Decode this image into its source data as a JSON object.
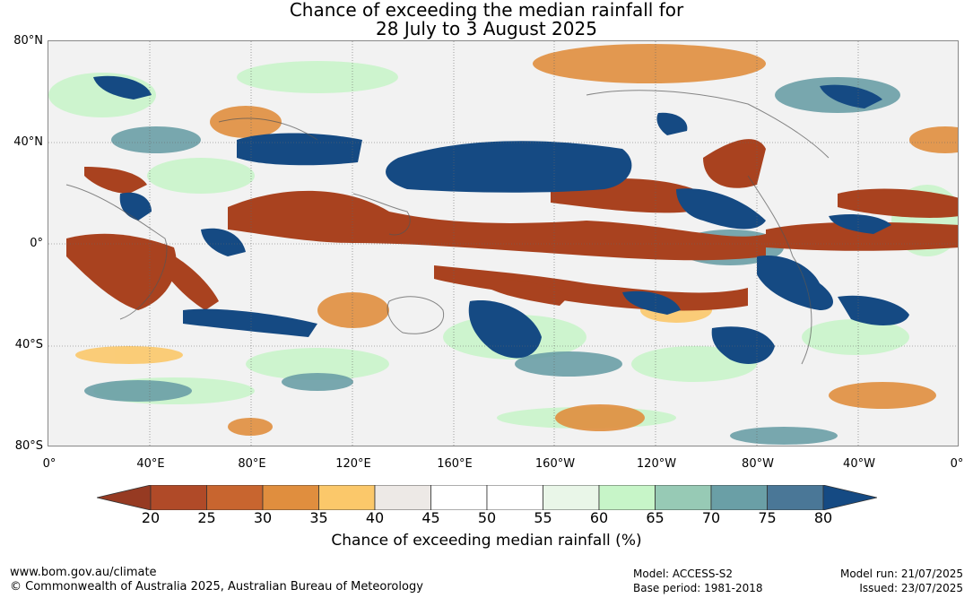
{
  "title": {
    "line1": "Chance of exceeding the median rainfall for",
    "line2": "28 July to 3 August 2025"
  },
  "map": {
    "lat_labels": [
      "80°N",
      "40°N",
      "0°",
      "40°S",
      "80°S"
    ],
    "lon_labels": [
      "0°",
      "40°E",
      "80°E",
      "120°E",
      "160°E",
      "160°W",
      "120°W",
      "80°W",
      "40°W",
      "0°"
    ]
  },
  "colorbar": {
    "title": "Chance of exceeding median rainfall (%)",
    "ticks": [
      "20",
      "25",
      "30",
      "35",
      "40",
      "45",
      "50",
      "55",
      "60",
      "65",
      "70",
      "75",
      "80"
    ],
    "low_extend_color": "#963a22",
    "high_extend_color": "#154a83",
    "colors": [
      "#b04a28",
      "#c8652f",
      "#e08e3e",
      "#fbc86a",
      "#ede9e6",
      "#ffffff",
      "#ffffff",
      "#e9f6e8",
      "#c7f5c8",
      "#97cab5",
      "#6a9fa6",
      "#4a7797"
    ]
  },
  "footer": {
    "url": "www.bom.gov.au/climate",
    "copyright": "© Commonwealth of Australia 2025, Australian Bureau of Meteorology",
    "model": "Model: ACCESS-S2",
    "base_period": "Base period: 1981-2018",
    "model_run": "Model run: 21/07/2025",
    "issued": "Issued: 23/07/2025"
  }
}
